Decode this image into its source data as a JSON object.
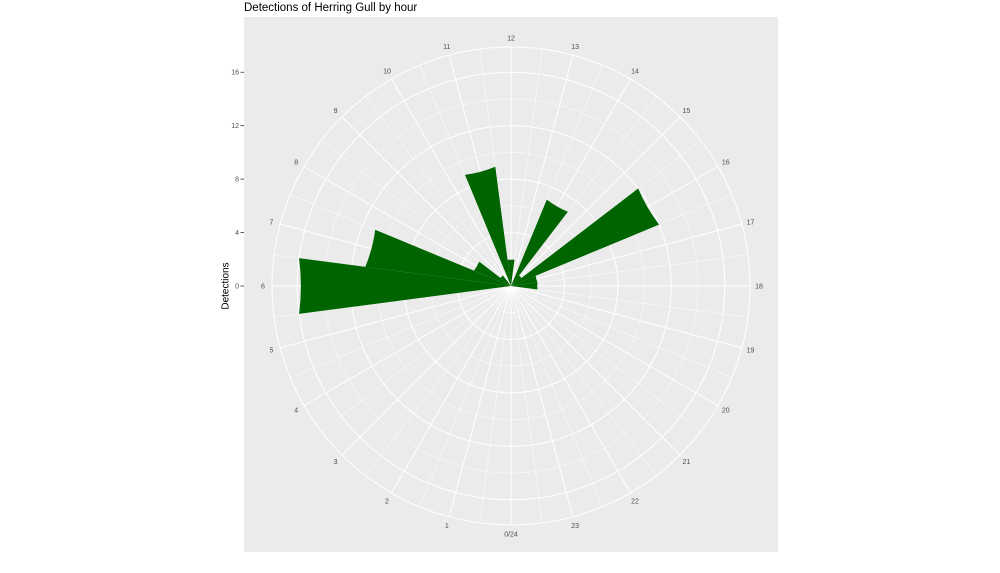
{
  "chart_data": {
    "type": "bar",
    "coord": "polar",
    "title": "Detections of Herring Gull by hour",
    "ylabel": "Detections",
    "xlabel": "",
    "y_ticks": [
      "0",
      "4",
      "8",
      "12",
      "16"
    ],
    "ylim": [
      0,
      17.5
    ],
    "hour_labels": [
      "0/24",
      "1",
      "2",
      "3",
      "4",
      "5",
      "6",
      "7",
      "8",
      "9",
      "10",
      "11",
      "12",
      "13",
      "14",
      "15",
      "16",
      "17",
      "18",
      "19",
      "20",
      "21",
      "22",
      "23"
    ],
    "categories": [
      0,
      1,
      2,
      3,
      4,
      5,
      6,
      7,
      8,
      9,
      10,
      11,
      12,
      13,
      14,
      15,
      16,
      17,
      18,
      19,
      20,
      21,
      22,
      23
    ],
    "values": [
      0,
      0,
      0,
      0,
      0,
      0,
      16,
      11,
      3,
      1,
      0,
      9,
      2,
      0,
      7,
      1,
      12,
      2,
      2,
      0,
      0,
      0,
      0,
      0
    ],
    "bar_color": "#006400",
    "panel_color": "#ebebeb",
    "grid_color": "#ffffff"
  }
}
